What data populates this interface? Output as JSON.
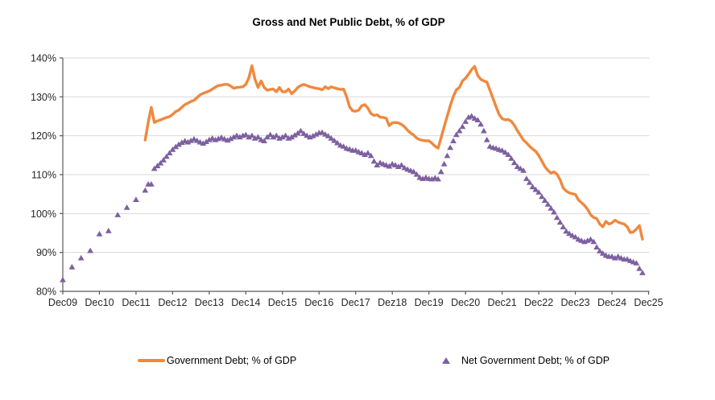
{
  "title": "Gross and Net Public Debt, % of GDP",
  "legend": [
    {
      "label": "Government Debt; % of GDP",
      "marker": "line",
      "color": "#F0883E"
    },
    {
      "label": "Net Government Debt; % of GDP",
      "marker": "triangle",
      "color": "#7D60A0"
    }
  ],
  "chart_data": {
    "type": "line",
    "title": "Gross and Net Public Debt, % of GDP",
    "xlabel": "",
    "ylabel": "",
    "x_axis": {
      "tick_labels": [
        "Dec09",
        "Dec10",
        "Dec11",
        "Dec12",
        "Dec13",
        "Dec14",
        "Dec15",
        "Dec16",
        "Dec17",
        "Dez18",
        "Dec19",
        "Dec20",
        "Dec21",
        "Dec22",
        "Dec23",
        "Dec24",
        "Dec25"
      ],
      "months_per_tick": 12
    },
    "y_axis": {
      "min": 80,
      "max": 140,
      "step": 10,
      "tick_labels": [
        "80%",
        "90%",
        "100%",
        "110%",
        "120%",
        "130%",
        "140%"
      ]
    },
    "grid": "horizontal",
    "legend_position": "bottom",
    "style": {
      "background": "#FFFFFF",
      "grid_color": "#D9D9D9",
      "axis_color": "#595959",
      "tick_label_color": "#262626",
      "gross_color": "#F0883E",
      "net_color": "#7D60A0"
    },
    "series": [
      {
        "name": "Government Debt; % of GDP",
        "type": "line",
        "color": "#F0883E",
        "start_month": 27,
        "monthly_values": [
          118.9,
          123.5,
          127.3,
          123.4,
          123.8,
          124.1,
          124.4,
          124.7,
          124.9,
          125.5,
          126.2,
          126.6,
          127.3,
          128.0,
          128.4,
          128.8,
          129.1,
          129.8,
          130.5,
          130.9,
          131.2,
          131.5,
          132.0,
          132.5,
          132.9,
          133.0,
          133.2,
          133.2,
          132.8,
          132.2,
          132.4,
          132.5,
          132.6,
          133.2,
          134.9,
          138.0,
          134.5,
          132.4,
          134.1,
          132.4,
          131.7,
          131.9,
          132.0,
          131.3,
          132.4,
          131.3,
          131.3,
          132.0,
          130.8,
          131.5,
          132.4,
          132.9,
          133.2,
          132.9,
          132.6,
          132.4,
          132.2,
          132.1,
          131.8,
          132.6,
          132.1,
          132.6,
          132.3,
          132.1,
          131.9,
          132.0,
          130.1,
          127.4,
          126.4,
          126.3,
          126.6,
          127.7,
          128.0,
          127.1,
          125.7,
          125.2,
          125.4,
          124.8,
          124.7,
          124.5,
          122.6,
          123.3,
          123.4,
          123.3,
          122.9,
          122.3,
          121.4,
          120.7,
          120.2,
          119.4,
          119.0,
          118.8,
          118.7,
          118.7,
          118.1,
          117.3,
          116.8,
          119.5,
          122.3,
          125.0,
          127.7,
          130.1,
          131.8,
          132.4,
          134.1,
          134.8,
          135.8,
          137.0,
          137.8,
          135.5,
          134.5,
          134.1,
          133.8,
          131.7,
          129.6,
          127.5,
          125.5,
          124.4,
          124.1,
          124.2,
          123.7,
          122.7,
          121.3,
          120.1,
          118.9,
          118.2,
          117.3,
          116.6,
          116.0,
          114.9,
          113.5,
          112.1,
          111.1,
          110.4,
          110.7,
          110.1,
          108.7,
          106.6,
          105.8,
          105.3,
          105.1,
          104.9,
          103.5,
          102.8,
          102.1,
          101.1,
          99.7,
          99.0,
          98.7,
          97.3,
          96.6,
          98.0,
          97.3,
          97.6,
          98.3,
          97.8,
          97.5,
          97.3,
          96.6,
          95.1,
          95.3,
          96.0,
          96.9,
          93.4
        ]
      },
      {
        "name": "Net Government Debt; % of GDP",
        "type": "scatter-triangle",
        "color": "#7D60A0",
        "early_points": [
          [
            0,
            83.0
          ],
          [
            3,
            86.3
          ],
          [
            6,
            88.6
          ],
          [
            9,
            90.5
          ],
          [
            12,
            94.8
          ],
          [
            15,
            95.6
          ],
          [
            18,
            99.7
          ],
          [
            21,
            101.6
          ],
          [
            24,
            103.6
          ],
          [
            27,
            106.0
          ]
        ],
        "start_month": 28,
        "monthly_values": [
          107.6,
          107.6,
          111.6,
          112.3,
          113.0,
          113.8,
          114.7,
          115.6,
          116.5,
          117.2,
          117.8,
          118.3,
          118.7,
          118.4,
          118.8,
          119.2,
          118.8,
          118.4,
          118.1,
          118.5,
          119.0,
          119.4,
          119.0,
          119.3,
          119.6,
          119.2,
          118.9,
          119.3,
          119.7,
          120.1,
          119.7,
          120.1,
          120.3,
          119.7,
          120.1,
          119.4,
          119.7,
          119.0,
          118.7,
          119.7,
          120.3,
          119.7,
          120.1,
          119.4,
          119.7,
          120.1,
          119.4,
          119.7,
          120.2,
          120.7,
          121.3,
          120.6,
          120.1,
          119.7,
          120.0,
          120.4,
          120.8,
          120.9,
          120.4,
          120.0,
          119.4,
          118.8,
          118.2,
          117.6,
          117.3,
          116.8,
          116.6,
          116.3,
          116.3,
          115.9,
          115.6,
          115.2,
          115.6,
          114.9,
          113.5,
          112.5,
          113.1,
          112.8,
          112.5,
          112.2,
          112.8,
          112.5,
          112.1,
          112.5,
          111.8,
          111.4,
          111.1,
          110.8,
          110.1,
          109.3,
          109.0,
          109.3,
          109.0,
          108.9,
          109.2,
          108.9,
          110.8,
          112.8,
          114.9,
          117.0,
          118.7,
          120.3,
          121.3,
          122.4,
          123.7,
          124.8,
          125.1,
          124.5,
          124.1,
          123.0,
          121.3,
          119.0,
          117.3,
          117.0,
          116.8,
          116.5,
          116.3,
          115.8,
          115.2,
          114.2,
          113.1,
          112.1,
          111.6,
          111.1,
          109.0,
          108.0,
          106.9,
          106.2,
          105.5,
          104.4,
          103.4,
          102.4,
          101.4,
          100.4,
          99.0,
          97.8,
          96.6,
          95.5,
          94.9,
          94.4,
          94.0,
          93.4,
          93.1,
          92.8,
          93.1,
          93.4,
          92.8,
          91.4,
          90.4,
          89.8,
          89.3,
          89.0,
          89.0,
          88.6,
          89.0,
          88.6,
          88.3,
          88.3,
          87.9,
          87.6,
          87.3,
          85.9,
          84.8
        ]
      }
    ]
  }
}
